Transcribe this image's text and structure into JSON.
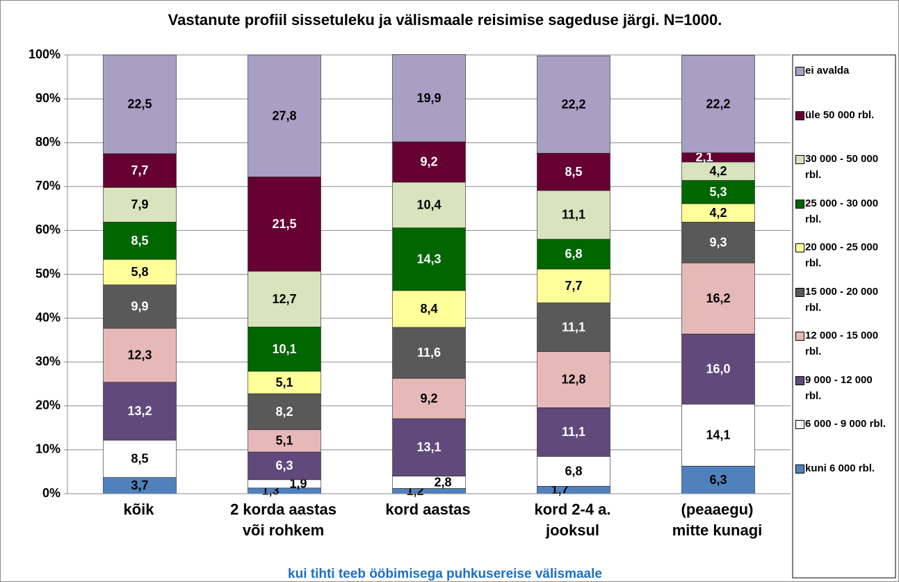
{
  "chart_data": {
    "type": "stacked_bar",
    "title": "Vastanute profiil sissetuleku ja välismaale reisimise sageduse järgi. N=1000.",
    "x_label": "kui tihti teeb ööbimisega puhkusereise välismaale",
    "categories": [
      "kõik",
      "2 korda aastas\nvõi rohkem",
      "kord aastas",
      "kord 2-4 a.\njooksul",
      "(peaaegu)\nmitte kunagi"
    ],
    "ylim": [
      0,
      100
    ],
    "yticks": [
      {
        "value": 0,
        "label": "0%"
      },
      {
        "value": 10,
        "label": "10%"
      },
      {
        "value": 20,
        "label": "20%"
      },
      {
        "value": 30,
        "label": "30%"
      },
      {
        "value": 40,
        "label": "40%"
      },
      {
        "value": 50,
        "label": "50%"
      },
      {
        "value": 60,
        "label": "60%"
      },
      {
        "value": 70,
        "label": "70%"
      },
      {
        "value": 80,
        "label": "80%"
      },
      {
        "value": 90,
        "label": "90%"
      },
      {
        "value": 100,
        "label": "100%"
      }
    ],
    "grid": true,
    "legend": "right",
    "series": [
      {
        "name": "kuni 6 000 rbl.",
        "color": "#4f81bd",
        "label_color": "#000000",
        "values": [
          3.7,
          1.3,
          1.2,
          1.7,
          6.3
        ],
        "value_labels": [
          "3,7",
          "1,3",
          "1,2",
          "1,7",
          "6,3"
        ]
      },
      {
        "name": "6 000 - 9 000 rbl.",
        "color": "#ffffff",
        "label_color": "#000000",
        "values": [
          8.5,
          1.9,
          2.8,
          6.8,
          14.1
        ],
        "value_labels": [
          "8,5",
          "1,9",
          "2,8",
          "6,8",
          "14,1"
        ]
      },
      {
        "name": "9 000 - 12 000 rbl.",
        "color": "#604a7b",
        "label_color": "#ffffff",
        "values": [
          13.2,
          6.3,
          13.1,
          11.1,
          16.0
        ],
        "value_labels": [
          "13,2",
          "6,3",
          "13,1",
          "11,1",
          "16,0"
        ]
      },
      {
        "name": "12 000 - 15 000 rbl.",
        "color": "#e6b9b8",
        "label_color": "#000000",
        "values": [
          12.3,
          5.1,
          9.2,
          12.8,
          16.2
        ],
        "value_labels": [
          "12,3",
          "5,1",
          "9,2",
          "12,8",
          "16,2"
        ]
      },
      {
        "name": "15 000 - 20 000 rbl.",
        "color": "#595959",
        "label_color": "#ffffff",
        "values": [
          9.9,
          8.2,
          11.6,
          11.1,
          9.3
        ],
        "value_labels": [
          "9,9",
          "8,2",
          "11,6",
          "11,1",
          "9,3"
        ]
      },
      {
        "name": "20 000 - 25 000 rbl.",
        "color": "#ffff99",
        "label_color": "#000000",
        "values": [
          5.8,
          5.1,
          8.4,
          7.7,
          4.2
        ],
        "value_labels": [
          "5,8",
          "5,1",
          "8,4",
          "7,7",
          "4,2"
        ]
      },
      {
        "name": "25 000 - 30 000 rbl.",
        "color": "#006600",
        "label_color": "#ffffff",
        "values": [
          8.5,
          10.1,
          14.3,
          6.8,
          5.3
        ],
        "value_labels": [
          "8,5",
          "10,1",
          "14,3",
          "6,8",
          "5,3"
        ]
      },
      {
        "name": "30 000 - 50 000 rbl.",
        "color": "#d7e4bd",
        "label_color": "#000000",
        "values": [
          7.9,
          12.7,
          10.4,
          11.1,
          4.2
        ],
        "value_labels": [
          "7,9",
          "12,7",
          "10,4",
          "11,1",
          "4,2"
        ]
      },
      {
        "name": "üle 50 000 rbl.",
        "color": "#660033",
        "label_color": "#ffffff",
        "values": [
          7.7,
          21.5,
          9.2,
          8.5,
          2.1
        ],
        "value_labels": [
          "7,7",
          "21,5",
          "9,2",
          "8,5",
          "2,1"
        ]
      },
      {
        "name": "ei avalda",
        "color": "#a89fc4",
        "label_color": "#000000",
        "values": [
          22.5,
          27.8,
          19.9,
          22.2,
          22.2
        ],
        "value_labels": [
          "22,5",
          "27,8",
          "19,9",
          "22,2",
          "22,2"
        ]
      }
    ]
  }
}
